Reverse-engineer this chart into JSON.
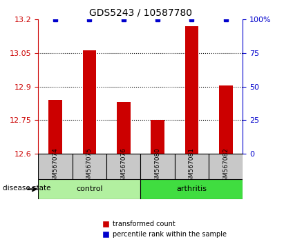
{
  "title": "GDS5243 / 10587780",
  "samples": [
    "GSM567074",
    "GSM567075",
    "GSM567076",
    "GSM567080",
    "GSM567081",
    "GSM567082"
  ],
  "red_bar_values": [
    12.84,
    13.062,
    12.832,
    12.75,
    13.17,
    12.905
  ],
  "blue_marker_values": [
    100,
    100,
    100,
    100,
    100,
    100
  ],
  "ylim_left": [
    12.6,
    13.2
  ],
  "ylim_right": [
    0,
    100
  ],
  "yticks_left": [
    12.6,
    12.75,
    12.9,
    13.05,
    13.2
  ],
  "yticks_right": [
    0,
    25,
    50,
    75,
    100
  ],
  "ytick_labels_left": [
    "12.6",
    "12.75",
    "12.9",
    "13.05",
    "13.2"
  ],
  "ytick_labels_right": [
    "0",
    "25",
    "50",
    "75",
    "100%"
  ],
  "grid_lines": [
    12.75,
    12.9,
    13.05
  ],
  "control_color": "#b2f0a0",
  "arthritis_color": "#40dd40",
  "bar_color": "#CC0000",
  "blue_marker_color": "#0000CC",
  "axis_left_color": "#CC0000",
  "axis_right_color": "#0000CC",
  "label_area_color": "#C8C8C8",
  "label_fontsize": 7.5,
  "tick_fontsize": 8,
  "title_fontsize": 10,
  "disease_label": "disease state",
  "legend_red": "transformed count",
  "legend_blue": "percentile rank within the sample"
}
